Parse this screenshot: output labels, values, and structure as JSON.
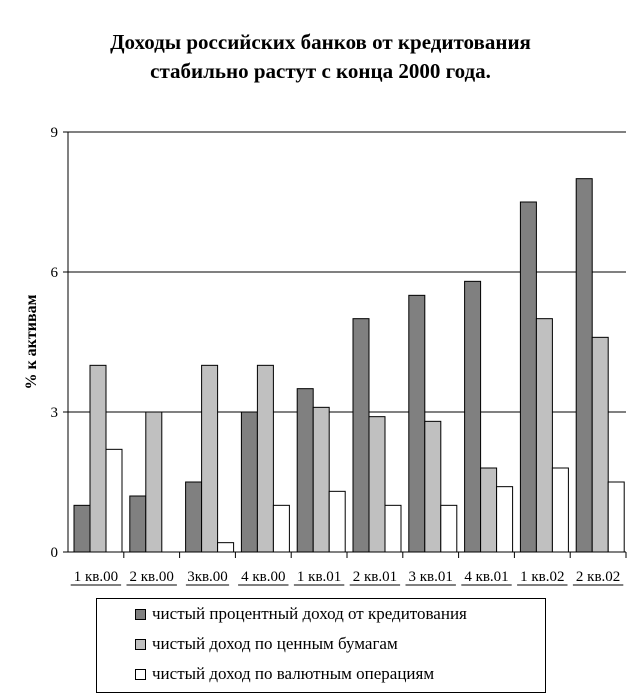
{
  "title_lines": [
    "Доходы российских банков от кредитования",
    "стабильно растут с конца 2000 года."
  ],
  "chart_data": {
    "type": "bar",
    "categories": [
      "1 кв.00",
      "2 кв.00",
      "3кв.00",
      "4 кв.00",
      "1 кв.01",
      "2 кв.01",
      "3 кв.01",
      "4 кв.01",
      "1 кв.02",
      "2 кв.02"
    ],
    "series": [
      {
        "name": "чистый процентный доход от кредитования",
        "color": "#808080",
        "values": [
          1.0,
          1.2,
          1.5,
          3.0,
          3.5,
          5.0,
          5.5,
          5.8,
          7.5,
          8.0
        ]
      },
      {
        "name": "чистый доход по ценным бумагам",
        "color": "#c0c0c0",
        "values": [
          4.0,
          3.0,
          4.0,
          4.0,
          3.1,
          2.9,
          2.8,
          1.8,
          5.0,
          4.6
        ]
      },
      {
        "name": "чистый доход по валютным операциям",
        "color": "#ffffff",
        "values": [
          2.2,
          0,
          0.2,
          1.0,
          1.3,
          1.0,
          1.0,
          1.4,
          1.8,
          1.5
        ]
      }
    ],
    "title": "Доходы российских банков от кредитования стабильно растут с конца 2000 года.",
    "xlabel": "",
    "ylabel": "% к активам",
    "ylim": [
      0,
      9
    ],
    "yticks": [
      "0",
      "3",
      "6",
      "9"
    ],
    "grid": true,
    "legend_position": "bottom"
  }
}
